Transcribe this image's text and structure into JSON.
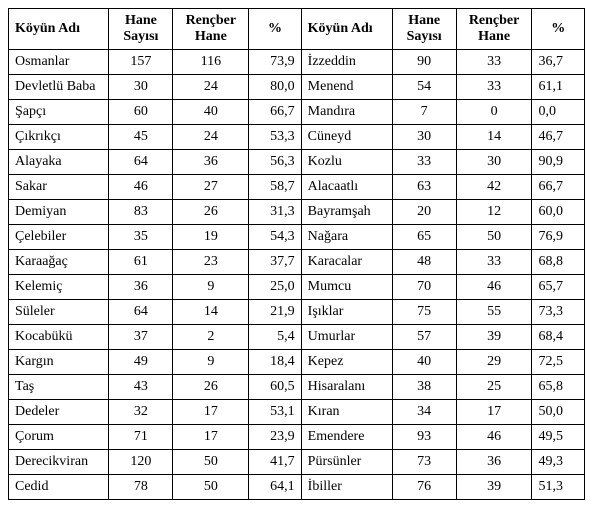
{
  "columns": {
    "koyun_adi": "Köyün Adı",
    "hane_sayisi": "Hane Sayısı",
    "rencber_hane": "Rençber Hane",
    "percent": "%"
  },
  "rows": [
    {
      "l_name": "Osmanlar",
      "l_hane": "157",
      "l_renc": "116",
      "l_pct": "73,9",
      "r_name": "İzzeddin",
      "r_hane": "90",
      "r_renc": "33",
      "r_pct": "36,7"
    },
    {
      "l_name": "Devletlü Baba",
      "l_hane": "30",
      "l_renc": "24",
      "l_pct": "80,0",
      "r_name": "Menend",
      "r_hane": "54",
      "r_renc": "33",
      "r_pct": "61,1"
    },
    {
      "l_name": "Şapçı",
      "l_hane": "60",
      "l_renc": "40",
      "l_pct": "66,7",
      "r_name": "Mandıra",
      "r_hane": "7",
      "r_renc": "0",
      "r_pct": "0,0"
    },
    {
      "l_name": "Çıkrıkçı",
      "l_hane": "45",
      "l_renc": "24",
      "l_pct": "53,3",
      "r_name": "Cüneyd",
      "r_hane": "30",
      "r_renc": "14",
      "r_pct": "46,7"
    },
    {
      "l_name": "Alayaka",
      "l_hane": "64",
      "l_renc": "36",
      "l_pct": "56,3",
      "r_name": "Kozlu",
      "r_hane": "33",
      "r_renc": "30",
      "r_pct": "90,9"
    },
    {
      "l_name": "Sakar",
      "l_hane": "46",
      "l_renc": "27",
      "l_pct": "58,7",
      "r_name": "Alacaatlı",
      "r_hane": "63",
      "r_renc": "42",
      "r_pct": "66,7"
    },
    {
      "l_name": "Demiyan",
      "l_hane": "83",
      "l_renc": "26",
      "l_pct": "31,3",
      "r_name": "Bayramşah",
      "r_hane": "20",
      "r_renc": "12",
      "r_pct": "60,0"
    },
    {
      "l_name": "Çelebiler",
      "l_hane": "35",
      "l_renc": "19",
      "l_pct": "54,3",
      "r_name": "Nağara",
      "r_hane": "65",
      "r_renc": "50",
      "r_pct": "76,9"
    },
    {
      "l_name": "Karaağaç",
      "l_hane": "61",
      "l_renc": "23",
      "l_pct": "37,7",
      "r_name": "Karacalar",
      "r_hane": "48",
      "r_renc": "33",
      "r_pct": "68,8"
    },
    {
      "l_name": "Kelemiç",
      "l_hane": "36",
      "l_renc": "9",
      "l_pct": "25,0",
      "r_name": "Mumcu",
      "r_hane": "70",
      "r_renc": "46",
      "r_pct": "65,7"
    },
    {
      "l_name": "Süleler",
      "l_hane": "64",
      "l_renc": "14",
      "l_pct": "21,9",
      "r_name": "Işıklar",
      "r_hane": "75",
      "r_renc": "55",
      "r_pct": "73,3"
    },
    {
      "l_name": "Kocabükü",
      "l_hane": "37",
      "l_renc": "2",
      "l_pct": "5,4",
      "r_name": "Umurlar",
      "r_hane": "57",
      "r_renc": "39",
      "r_pct": "68,4"
    },
    {
      "l_name": "Kargın",
      "l_hane": "49",
      "l_renc": "9",
      "l_pct": "18,4",
      "r_name": "Kepez",
      "r_hane": "40",
      "r_renc": "29",
      "r_pct": "72,5"
    },
    {
      "l_name": "Taş",
      "l_hane": "43",
      "l_renc": "26",
      "l_pct": "60,5",
      "r_name": "Hisaralanı",
      "r_hane": "38",
      "r_renc": "25",
      "r_pct": "65,8"
    },
    {
      "l_name": "Dedeler",
      "l_hane": "32",
      "l_renc": "17",
      "l_pct": "53,1",
      "r_name": "Kıran",
      "r_hane": "34",
      "r_renc": "17",
      "r_pct": "50,0"
    },
    {
      "l_name": "Çorum",
      "l_hane": "71",
      "l_renc": "17",
      "l_pct": "23,9",
      "r_name": "Emendere",
      "r_hane": "93",
      "r_renc": "46",
      "r_pct": "49,5"
    },
    {
      "l_name": "Derecikviran",
      "l_hane": "120",
      "l_renc": "50",
      "l_pct": "41,7",
      "r_name": "Pürsünler",
      "r_hane": "73",
      "r_renc": "36",
      "r_pct": "49,3"
    },
    {
      "l_name": "Cedid",
      "l_hane": "78",
      "l_renc": "50",
      "l_pct": "64,1",
      "r_name": "İbiller",
      "r_hane": "76",
      "r_renc": "39",
      "r_pct": "51,3"
    }
  ],
  "style": {
    "font_family": "Times New Roman",
    "font_size_pt": 11,
    "border_color": "#000000",
    "background_color": "#ffffff",
    "text_color": "#000000"
  }
}
